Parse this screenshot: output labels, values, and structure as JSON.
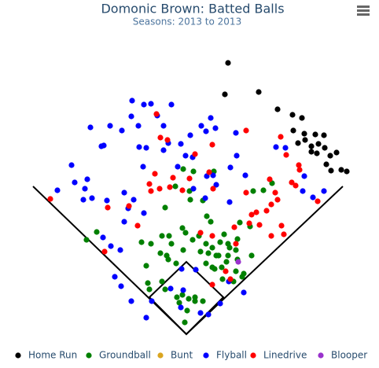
{
  "chart_data": {
    "type": "scatter",
    "title": "Domonic Brown: Batted Balls",
    "subtitle": "Seasons: 2013 to 2013",
    "xlim": [
      -237,
      245
    ],
    "ylim": [
      -43,
      425
    ],
    "series": [
      {
        "name": "Home Run",
        "color": "#000000",
        "x": [
          53,
          49,
          92,
          116,
          135,
          147,
          136,
          150,
          142,
          151,
          159,
          164,
          175,
          176,
          159,
          166,
          183,
          191,
          178,
          184,
          197,
          204,
          168
        ],
        "values": [
          345,
          305,
          308,
          286,
          279,
          275,
          259,
          255,
          243,
          247,
          239,
          254,
          253,
          237,
          232,
          230,
          227,
          231,
          216,
          208,
          209,
          207,
          242
        ]
      },
      {
        "name": "Groundball",
        "color": "#008000",
        "x": [
          -4,
          9,
          35,
          -14,
          4,
          5,
          21,
          26,
          31,
          -5,
          -114,
          -127,
          -57,
          -45,
          -31,
          -22,
          -19,
          -33,
          -23,
          -13,
          -4,
          -1,
          8,
          16,
          25,
          33,
          43,
          53,
          63,
          83,
          65,
          53,
          38,
          28,
          18,
          33,
          45,
          63,
          71,
          60,
          73,
          46,
          -51,
          -49,
          -31,
          -27,
          -47,
          -12,
          -5,
          3,
          11,
          21,
          -9,
          1,
          -2,
          11,
          41,
          48,
          65,
          81,
          68,
          85,
          98,
          109,
          -27,
          -25,
          51,
          36,
          25,
          55
        ],
        "values": [
          210,
          207,
          207,
          188,
          182,
          171,
          170,
          150,
          143,
          135,
          130,
          120,
          117,
          115,
          125,
          125,
          115,
          103,
          95,
          90,
          107,
          129,
          120,
          125,
          115,
          110,
          117,
          115,
          107,
          100,
          95,
          100,
          100,
          103,
          105,
          85,
          85,
          80,
          73,
          67,
          77,
          70,
          87,
          65,
          67,
          57,
          57,
          47,
          50,
          45,
          47,
          42,
          40,
          30,
          15,
          42,
          100,
          127,
          121,
          137,
          142,
          182,
          183,
          192,
          161,
          100,
          92,
          83,
          90,
          110
        ]
      },
      {
        "name": "Bunt",
        "color": "#daa520",
        "x": [],
        "values": []
      },
      {
        "name": "Flyball",
        "color": "#0000ff",
        "x": [
          -69,
          -54,
          -45,
          -19,
          -70,
          -61,
          -37,
          -29,
          -97,
          -122,
          -108,
          -105,
          -82,
          -60,
          -51,
          -23,
          -29,
          -7,
          5,
          19,
          31,
          37,
          25,
          63,
          56,
          75,
          64,
          -146,
          -164,
          -142,
          -129,
          -131,
          -126,
          -120,
          -101,
          -79,
          -74,
          -67,
          -54,
          -55,
          -11,
          -1,
          8,
          26,
          34,
          38,
          9,
          24,
          55,
          114,
          126,
          150,
          148,
          161,
          175,
          -96,
          -84,
          -106,
          -79,
          -91,
          -83,
          -70,
          -51,
          -44,
          -20,
          -6,
          -7,
          18,
          28,
          43,
          54,
          73,
          12,
          -4
        ],
        "values": [
          297,
          292,
          293,
          292,
          277,
          265,
          278,
          265,
          265,
          263,
          239,
          240,
          259,
          238,
          237,
          243,
          234,
          242,
          253,
          265,
          275,
          262,
          258,
          256,
          212,
          202,
          227,
          215,
          183,
          193,
          185,
          171,
          197,
          173,
          170,
          180,
          160,
          171,
          154,
          213,
          213,
          227,
          225,
          201,
          202,
          190,
          185,
          173,
          168,
          238,
          237,
          201,
          182,
          174,
          182,
          112,
          107,
          123,
          143,
          73,
          61,
          42,
          21,
          42,
          58,
          83,
          34,
          27,
          25,
          39,
          67,
          53,
          82,
          56
        ]
      },
      {
        "name": "Linedrive",
        "color": "#ff0000",
        "x": [
          -38,
          -33,
          -24,
          -40,
          -34,
          -47,
          -73,
          -100,
          -173,
          -104,
          -62,
          -45,
          -21,
          -17,
          -5,
          4,
          11,
          33,
          29,
          34,
          76,
          120,
          127,
          143,
          144,
          139,
          113,
          116,
          108,
          102,
          89,
          83,
          80,
          93,
          108,
          124,
          121,
          61,
          33,
          18,
          63,
          50,
          56,
          33,
          167,
          106,
          76,
          134
        ],
        "values": [
          280,
          250,
          247,
          204,
          185,
          191,
          163,
          161,
          172,
          105,
          138,
          182,
          187,
          199,
          183,
          198,
          229,
          241,
          206,
          185,
          259,
          251,
          228,
          215,
          209,
          189,
          180,
          171,
          165,
          157,
          155,
          152,
          141,
          139,
          125,
          127,
          138,
          136,
          125,
          129,
          115,
          80,
          70,
          63,
          169,
          197,
          180,
          193
        ]
      },
      {
        "name": "Blooper",
        "color": "#9932cc",
        "x": [
          66
        ],
        "values": [
          92
        ]
      }
    ]
  }
}
